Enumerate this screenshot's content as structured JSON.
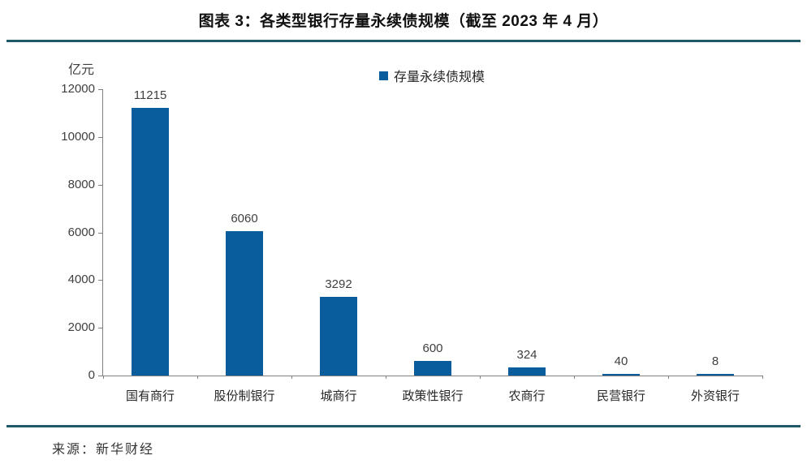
{
  "page": {
    "title": "图表 3：各类型银行存量永续债规模（截至 2023 年 4 月）",
    "source": "来源：新华财经"
  },
  "chart_data": {
    "type": "bar",
    "title": "图表 3：各类型银行存量永续债规模（截至 2023 年 4 月）",
    "unit_label": "亿元",
    "legend": [
      "存量永续债规模"
    ],
    "legend_position": "top-center",
    "categories": [
      "国有商行",
      "股份制银行",
      "城商行",
      "政策性银行",
      "农商行",
      "民营银行",
      "外资银行"
    ],
    "values": [
      11215,
      6060,
      3292,
      600,
      324,
      40,
      8
    ],
    "ylim": [
      0,
      12000
    ],
    "yticks": [
      0,
      2000,
      4000,
      6000,
      8000,
      10000,
      12000
    ],
    "grid": false,
    "colors": {
      "bar": "#0a5d9c",
      "rule": "#215868",
      "axis": "#808080",
      "label_text": "#3f3f3f"
    }
  }
}
